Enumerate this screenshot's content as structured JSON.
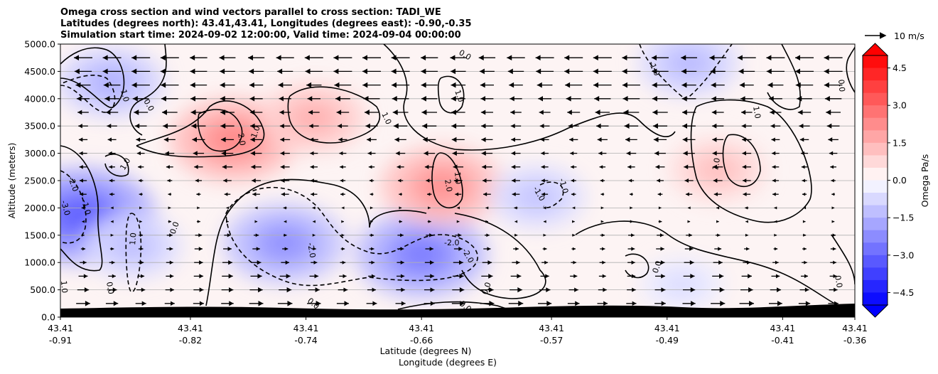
{
  "chart_data": {
    "type": "heatmap",
    "title_lines": [
      "Omega cross section and wind vectors parallel to cross section: TADI_WE",
      "Latitudes (degrees north): 43.41,43.41, Longitudes (degrees east): -0.90,-0.35",
      "Simulation start time: 2024-09-02 12:00:00, Valid time: 2024-09-04 00:00:00"
    ],
    "ylabel": "Altitude (meters)",
    "xlabel_lat": "Latitude (degrees N)",
    "xlabel_lon": "Longitude (degrees E)",
    "ylim": [
      0,
      5000
    ],
    "y_ticks": [
      "0.0",
      "500.0",
      "1000.0",
      "1500.0",
      "2000.0",
      "2500.0",
      "3000.0",
      "3500.0",
      "4000.0",
      "4500.0",
      "5000.0"
    ],
    "x_ticks": [
      {
        "lat": "43.41",
        "lon": "-0.91"
      },
      {
        "lat": "43.41",
        "lon": "-0.82"
      },
      {
        "lat": "43.41",
        "lon": "-0.74"
      },
      {
        "lat": "43.41",
        "lon": "-0.66"
      },
      {
        "lat": "43.41",
        "lon": "-0.57"
      },
      {
        "lat": "43.41",
        "lon": "-0.49"
      },
      {
        "lat": "43.41",
        "lon": "-0.41"
      },
      {
        "lat": "43.41",
        "lon": "-0.36"
      }
    ],
    "colorbar": {
      "label": "Omega Pa/s",
      "range": [
        -5,
        5
      ],
      "ticks": [
        "4.5",
        "3.0",
        "1.5",
        "0.0",
        "−1.5",
        "−3.0",
        "−4.5"
      ],
      "low_color": "#0000ff",
      "high_color": "#ff0000"
    },
    "quiver_key": "10 m/s",
    "contour_labels": [
      "0.0",
      "-1.0",
      "1.0",
      "2.0",
      "-2.0",
      "-3.0"
    ],
    "omega_centers": [
      {
        "lon": -0.895,
        "alt": 1850,
        "value": -3.2
      },
      {
        "lon": -0.875,
        "alt": 4300,
        "value": -1.6
      },
      {
        "lon": -0.86,
        "alt": 1300,
        "value": -1.3
      },
      {
        "lon": -0.79,
        "alt": 3250,
        "value": 2.4
      },
      {
        "lon": -0.735,
        "alt": 3650,
        "value": 1.6
      },
      {
        "lon": -0.755,
        "alt": 1350,
        "value": -2.2
      },
      {
        "lon": -0.66,
        "alt": 1150,
        "value": -2.6
      },
      {
        "lon": -0.646,
        "alt": 2400,
        "value": 2.2
      },
      {
        "lon": -0.58,
        "alt": 2200,
        "value": -1.2
      },
      {
        "lon": -0.475,
        "alt": 4650,
        "value": -1.4
      },
      {
        "lon": -0.455,
        "alt": 2700,
        "value": 1.3
      },
      {
        "lon": -0.48,
        "alt": 600,
        "value": -0.7
      }
    ],
    "wind": "easterly (leftward) above ~2000 m, westerly (rightward) below ~1500 m",
    "terrain_height_m": [
      140,
      150,
      150,
      120,
      120,
      140,
      220
    ]
  }
}
